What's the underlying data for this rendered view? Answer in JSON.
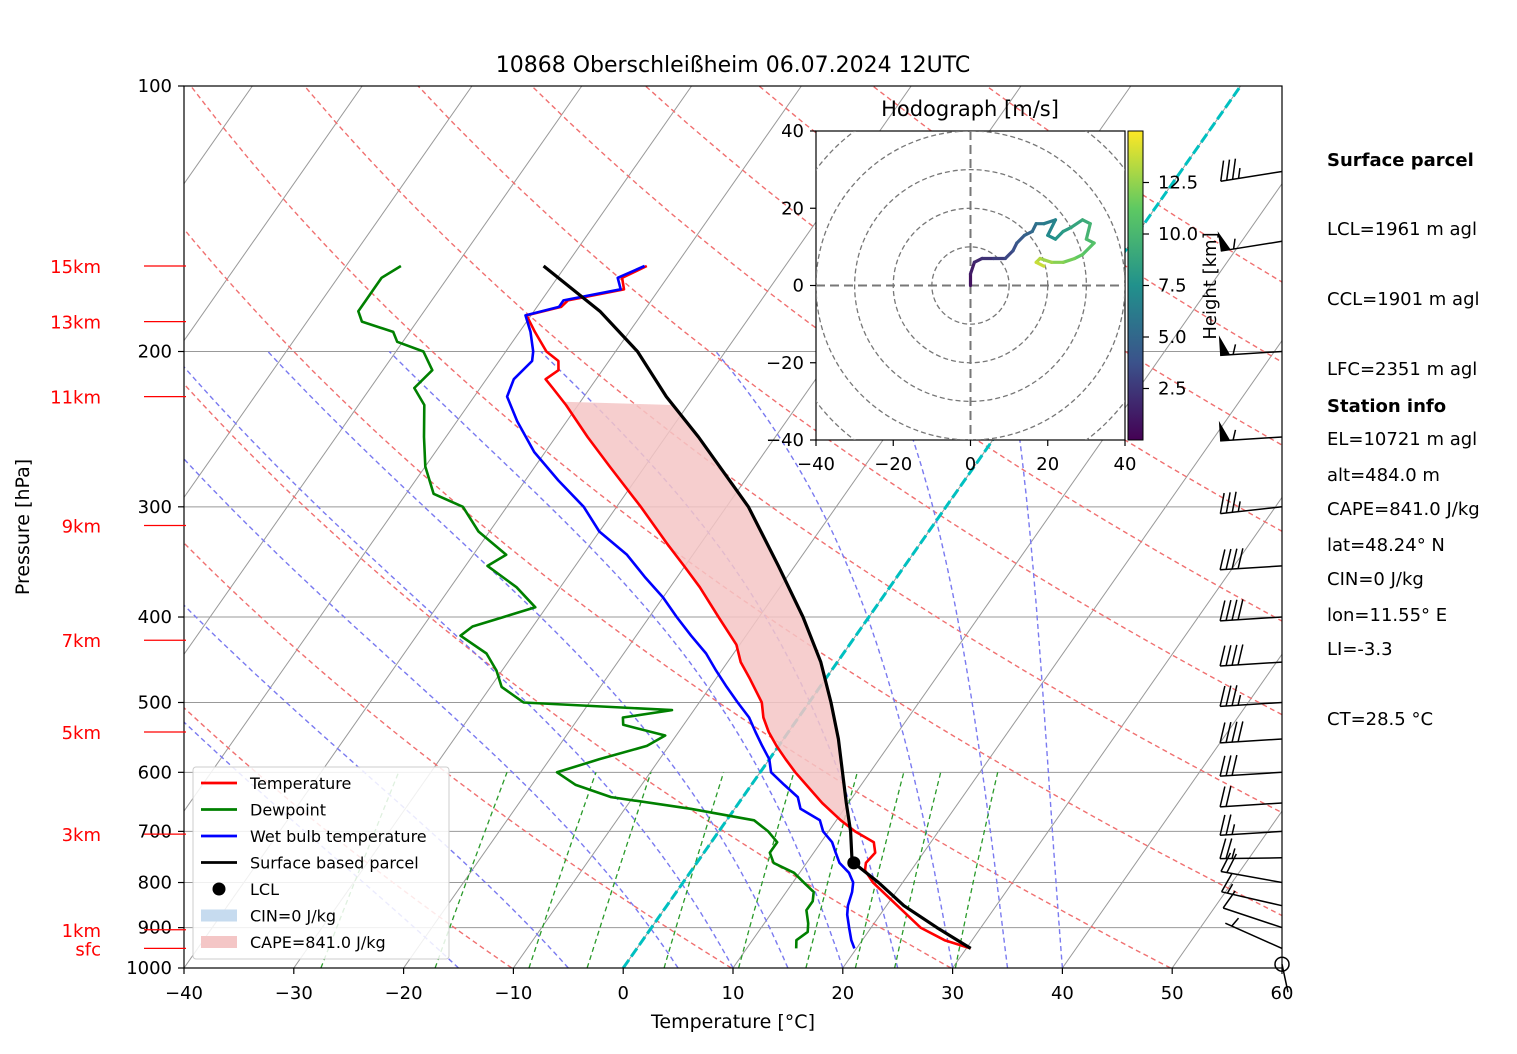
{
  "title": "10868 Oberschleißheim 06.07.2024 12UTC",
  "xlabel": "Temperature [°C]",
  "ylabel": "Pressure [hPa]",
  "surface_parcel": {
    "header": "Surface parcel",
    "lines": [
      "LCL=1961 m agl",
      "CCL=1901 m agl",
      "LFC=2351 m agl",
      "EL=10721 m agl",
      "CAPE=841.0 J/kg",
      "CIN=0 J/kg",
      "LI=-3.3",
      "CT=28.5 °C"
    ]
  },
  "station_info": {
    "header": "Station info",
    "lines": [
      "alt=484.0 m",
      "lat=48.24° N",
      "lon=11.55° E"
    ]
  },
  "legend": [
    {
      "label": "Temperature",
      "color": "#ff0000",
      "kind": "line"
    },
    {
      "label": "Dewpoint",
      "color": "#008000",
      "kind": "line"
    },
    {
      "label": "Wet bulb temperature",
      "color": "#0000ff",
      "kind": "line"
    },
    {
      "label": "Surface based parcel",
      "color": "#000000",
      "kind": "line"
    },
    {
      "label": "LCL",
      "color": "#000000",
      "kind": "dot"
    },
    {
      "label": "CIN=0 J/kg",
      "color": "#c6dbef",
      "kind": "patch"
    },
    {
      "label": "CAPE=841.0 J/kg",
      "color": "#f4c6c6",
      "kind": "patch"
    }
  ],
  "height_labels": [
    {
      "text": "15km",
      "p": 160
    },
    {
      "text": "13km",
      "p": 185
    },
    {
      "text": "11km",
      "p": 225
    },
    {
      "text": "9km",
      "p": 315
    },
    {
      "text": "7km",
      "p": 425
    },
    {
      "text": "5km",
      "p": 540
    },
    {
      "text": "3km",
      "p": 705
    },
    {
      "text": "1km",
      "p": 905
    },
    {
      "text": "sfc",
      "p": 950
    }
  ],
  "hodograph": {
    "title": "Hodograph [m/s]",
    "colorbar_label": "Height [km]",
    "ticks": [
      "−40",
      "−20",
      "0",
      "20",
      "40"
    ],
    "colorbar_ticks": [
      "12.5",
      "10.0",
      "7.5",
      "5.0",
      "2.5"
    ],
    "range": [
      -40,
      40
    ],
    "colorbar_range": [
      0,
      15
    ],
    "colormap": [
      "#440154",
      "#3b528b",
      "#21918c",
      "#5ec962",
      "#fde725"
    ],
    "points": [
      [
        0,
        0,
        0.5
      ],
      [
        0,
        3,
        1
      ],
      [
        1,
        6,
        1.5
      ],
      [
        3,
        7,
        2
      ],
      [
        6,
        7,
        2.5
      ],
      [
        9,
        7,
        3
      ],
      [
        11,
        9,
        3.5
      ],
      [
        12,
        11,
        4
      ],
      [
        14,
        13,
        4.5
      ],
      [
        16,
        14,
        5
      ],
      [
        17,
        16,
        5.5
      ],
      [
        19,
        16,
        6
      ],
      [
        22,
        17,
        6.5
      ],
      [
        20,
        13,
        7
      ],
      [
        22,
        12,
        7.5
      ],
      [
        24,
        14,
        8
      ],
      [
        26,
        15,
        8.5
      ],
      [
        29,
        17,
        9
      ],
      [
        31,
        16,
        9.5
      ],
      [
        30,
        12,
        10
      ],
      [
        32,
        11,
        10.5
      ],
      [
        29,
        8,
        11
      ],
      [
        27,
        7,
        11.5
      ],
      [
        24,
        6,
        12
      ],
      [
        21,
        6,
        12.5
      ],
      [
        18,
        7,
        13
      ],
      [
        17,
        6,
        13.5
      ],
      [
        19,
        5,
        14
      ]
    ]
  },
  "chart_data": {
    "type": "line",
    "title": "10868 Oberschleißheim 06.07.2024 12UTC",
    "xlabel": "Temperature [°C]",
    "ylabel": "Pressure [hPa]",
    "xlim": [
      -40,
      60
    ],
    "ylim": [
      1000,
      100
    ],
    "yscale": "log",
    "skew": "skew-T",
    "xticks": [
      "−40",
      "−30",
      "−20",
      "−10",
      "0",
      "10",
      "20",
      "30",
      "40",
      "50",
      "60"
    ],
    "yticks": [
      1000,
      900,
      800,
      700,
      600,
      500,
      400,
      300,
      200,
      100
    ],
    "series": [
      {
        "name": "Temperature",
        "color": "#ff0000",
        "points": [
          [
            950,
            30.4
          ],
          [
            930,
            27.5
          ],
          [
            900,
            24.5
          ],
          [
            850,
            21
          ],
          [
            800,
            17.3
          ],
          [
            775,
            15.8
          ],
          [
            760,
            15.4
          ],
          [
            740,
            15.6
          ],
          [
            720,
            14.8
          ],
          [
            700,
            12.4
          ],
          [
            680,
            10.4
          ],
          [
            650,
            7.6
          ],
          [
            620,
            5
          ],
          [
            600,
            3.2
          ],
          [
            580,
            1.5
          ],
          [
            560,
            -0.2
          ],
          [
            540,
            -1.8
          ],
          [
            520,
            -3.2
          ],
          [
            500,
            -4.3
          ],
          [
            470,
            -6.9
          ],
          [
            450,
            -8.8
          ],
          [
            430,
            -10.3
          ],
          [
            400,
            -13.7
          ],
          [
            370,
            -17.3
          ],
          [
            350,
            -20.1
          ],
          [
            330,
            -23.1
          ],
          [
            300,
            -27.8
          ],
          [
            270,
            -33.2
          ],
          [
            250,
            -37.1
          ],
          [
            230,
            -41.1
          ],
          [
            220,
            -43.4
          ],
          [
            215,
            -44.6
          ],
          [
            210,
            -44
          ],
          [
            205,
            -44.6
          ],
          [
            200,
            -46.3
          ],
          [
            190,
            -48.6
          ],
          [
            182,
            -50.4
          ],
          [
            178,
            -47.8
          ],
          [
            175,
            -47.6
          ],
          [
            170,
            -43.2
          ],
          [
            165,
            -44.1
          ],
          [
            160,
            -42.6
          ]
        ]
      },
      {
        "name": "Dewpoint",
        "color": "#008000",
        "points": [
          [
            950,
            14.5
          ],
          [
            930,
            14
          ],
          [
            910,
            14.5
          ],
          [
            890,
            14
          ],
          [
            860,
            13
          ],
          [
            840,
            13
          ],
          [
            820,
            12.5
          ],
          [
            800,
            11
          ],
          [
            780,
            9.5
          ],
          [
            760,
            7
          ],
          [
            740,
            6
          ],
          [
            720,
            6
          ],
          [
            700,
            4.5
          ],
          [
            680,
            2.5
          ],
          [
            660,
            -4
          ],
          [
            640,
            -12
          ],
          [
            620,
            -16
          ],
          [
            600,
            -18.5
          ],
          [
            580,
            -15.5
          ],
          [
            560,
            -12
          ],
          [
            545,
            -11
          ],
          [
            530,
            -15.5
          ],
          [
            520,
            -16
          ],
          [
            510,
            -12
          ],
          [
            500,
            -26
          ],
          [
            480,
            -29
          ],
          [
            460,
            -30.5
          ],
          [
            440,
            -32.5
          ],
          [
            420,
            -36
          ],
          [
            410,
            -35.5
          ],
          [
            390,
            -31
          ],
          [
            370,
            -34
          ],
          [
            350,
            -38
          ],
          [
            340,
            -37
          ],
          [
            320,
            -41
          ],
          [
            300,
            -44
          ],
          [
            290,
            -47.5
          ],
          [
            270,
            -50
          ],
          [
            250,
            -52
          ],
          [
            230,
            -54
          ],
          [
            220,
            -56
          ],
          [
            210,
            -55.5
          ],
          [
            200,
            -57.5
          ],
          [
            195,
            -60.5
          ],
          [
            190,
            -61.5
          ],
          [
            185,
            -65
          ],
          [
            180,
            -66
          ],
          [
            175,
            -66
          ],
          [
            170,
            -66
          ],
          [
            165,
            -66
          ],
          [
            160,
            -65
          ]
        ]
      },
      {
        "name": "Wet bulb temperature",
        "color": "#0000ff",
        "points": [
          [
            950,
            19.8
          ],
          [
            930,
            19
          ],
          [
            900,
            18
          ],
          [
            870,
            17
          ],
          [
            850,
            16.5
          ],
          [
            820,
            16
          ],
          [
            800,
            15.5
          ],
          [
            780,
            14.5
          ],
          [
            760,
            13
          ],
          [
            740,
            12
          ],
          [
            720,
            11
          ],
          [
            700,
            9.5
          ],
          [
            680,
            8.5
          ],
          [
            660,
            6
          ],
          [
            640,
            5
          ],
          [
            620,
            3
          ],
          [
            600,
            1
          ],
          [
            580,
            0
          ],
          [
            560,
            -1.5
          ],
          [
            540,
            -3
          ],
          [
            520,
            -4.5
          ],
          [
            500,
            -6.5
          ],
          [
            480,
            -8.5
          ],
          [
            460,
            -10.5
          ],
          [
            440,
            -12.5
          ],
          [
            420,
            -15
          ],
          [
            400,
            -17.5
          ],
          [
            380,
            -20
          ],
          [
            360,
            -23
          ],
          [
            340,
            -26
          ],
          [
            320,
            -30
          ],
          [
            300,
            -33
          ],
          [
            280,
            -37
          ],
          [
            260,
            -41
          ],
          [
            240,
            -44.5
          ],
          [
            225,
            -47
          ],
          [
            215,
            -47.5
          ],
          [
            205,
            -47
          ],
          [
            200,
            -47.5
          ],
          [
            190,
            -49
          ],
          [
            182,
            -50.5
          ],
          [
            178,
            -48
          ],
          [
            175,
            -48
          ],
          [
            170,
            -43.5
          ],
          [
            165,
            -44.5
          ],
          [
            160,
            -42.8
          ]
        ]
      },
      {
        "name": "Surface based parcel",
        "color": "#000000",
        "points": [
          [
            950,
            30.4
          ],
          [
            900,
            26
          ],
          [
            850,
            21.6
          ],
          [
            800,
            17.8
          ],
          [
            760,
            14.3
          ],
          [
            750,
            13.8
          ],
          [
            700,
            12
          ],
          [
            650,
            9.8
          ],
          [
            600,
            7.5
          ],
          [
            550,
            5
          ],
          [
            500,
            2
          ],
          [
            450,
            -1.5
          ],
          [
            400,
            -6
          ],
          [
            350,
            -11.5
          ],
          [
            300,
            -18
          ],
          [
            250,
            -27
          ],
          [
            225,
            -32.5
          ],
          [
            200,
            -38
          ],
          [
            180,
            -44
          ],
          [
            160,
            -52
          ]
        ]
      }
    ],
    "lcl": {
      "p": 760,
      "t": 14.3
    },
    "cape_label": "CAPE=841.0 J/kg",
    "cin_label": "CIN=0 J/kg",
    "wind_barbs": [
      {
        "p": 990,
        "speed_kt": 2,
        "dir": 0
      },
      {
        "p": 950,
        "speed_kt": 5,
        "dir": 10
      },
      {
        "p": 900,
        "speed_kt": 10,
        "dir": 20
      },
      {
        "p": 850,
        "speed_kt": 15,
        "dir": 30
      },
      {
        "p": 800,
        "speed_kt": 20,
        "dir": 35
      },
      {
        "p": 750,
        "speed_kt": 25,
        "dir": 55
      },
      {
        "p": 700,
        "speed_kt": 25,
        "dir": 60
      },
      {
        "p": 650,
        "speed_kt": 20,
        "dir": 60
      },
      {
        "p": 600,
        "speed_kt": 30,
        "dir": 60
      },
      {
        "p": 550,
        "speed_kt": 40,
        "dir": 60
      },
      {
        "p": 500,
        "speed_kt": 35,
        "dir": 60
      },
      {
        "p": 450,
        "speed_kt": 40,
        "dir": 60
      },
      {
        "p": 400,
        "speed_kt": 40,
        "dir": 60
      },
      {
        "p": 350,
        "speed_kt": 40,
        "dir": 60
      },
      {
        "p": 300,
        "speed_kt": 35,
        "dir": 65
      },
      {
        "p": 250,
        "speed_kt": 55,
        "dir": 60
      },
      {
        "p": 200,
        "speed_kt": 55,
        "dir": 60
      },
      {
        "p": 150,
        "speed_kt": 55,
        "dir": 70
      },
      {
        "p": 125,
        "speed_kt": 35,
        "dir": 70
      }
    ]
  }
}
